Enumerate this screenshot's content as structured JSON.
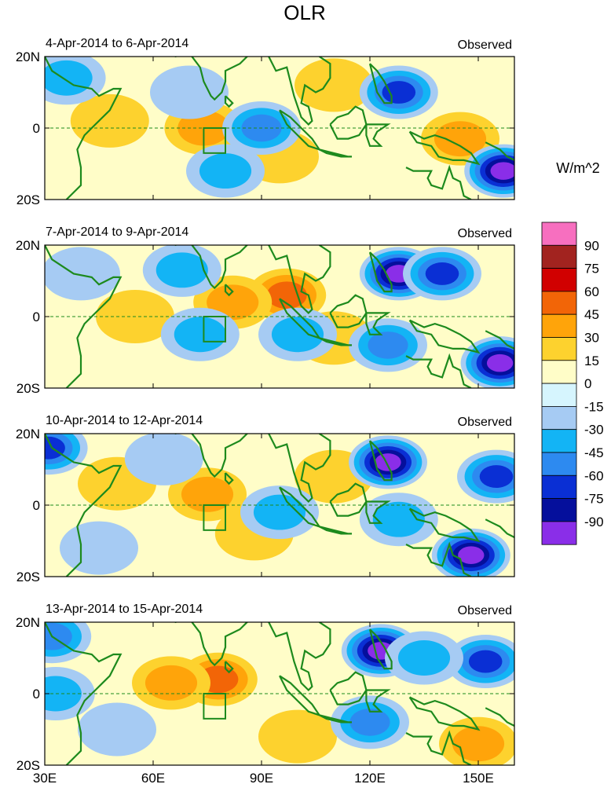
{
  "chart_data": {
    "type": "heatmap",
    "title": "OLR",
    "units": "W/m^2",
    "x_axis": {
      "range": [
        30,
        160
      ],
      "ticks": [
        30,
        60,
        90,
        120,
        150
      ],
      "tick_labels": [
        "30E",
        "60E",
        "90E",
        "120E",
        "150E"
      ]
    },
    "y_axis": {
      "range": [
        -20,
        20
      ],
      "ticks": [
        20,
        0,
        -20
      ],
      "tick_labels": [
        "20N",
        "0",
        "20S"
      ]
    },
    "colorbar": {
      "levels": [
        90,
        75,
        60,
        45,
        30,
        15,
        0,
        -15,
        -30,
        -45,
        -60,
        -75,
        -90
      ],
      "labels": [
        "90",
        "75",
        "60",
        "45",
        "30",
        "15",
        "0",
        "-15",
        "-30",
        "-45",
        "-60",
        "-75",
        "-90"
      ],
      "colors": [
        "#f76fbf",
        "#a2231f",
        "#d10000",
        "#f26507",
        "#ffa40a",
        "#fdd22e",
        "#fffdc8",
        "#d6f5fe",
        "#a6cbf3",
        "#13b4f5",
        "#2d8af0",
        "#0a2fd4",
        "#050f9c",
        "#8a2ee8"
      ]
    },
    "panels": [
      {
        "period": "4-Apr-2014 to 6-Apr-2014",
        "label": "Observed",
        "anomalies": [
          {
            "lon": 48,
            "lat": 2,
            "value": 25
          },
          {
            "lon": 74,
            "lat": 0,
            "value": 38
          },
          {
            "lon": 95,
            "lat": -8,
            "value": 22
          },
          {
            "lon": 145,
            "lat": -3,
            "value": 40
          },
          {
            "lon": 110,
            "lat": 12,
            "value": 20
          },
          {
            "lon": 90,
            "lat": 0,
            "value": -45
          },
          {
            "lon": 80,
            "lat": -12,
            "value": -40
          },
          {
            "lon": 128,
            "lat": 10,
            "value": -70
          },
          {
            "lon": 157,
            "lat": -12,
            "value": -95
          },
          {
            "lon": 36,
            "lat": 14,
            "value": -30
          },
          {
            "lon": 70,
            "lat": 10,
            "value": -15
          }
        ]
      },
      {
        "period": "7-Apr-2014 to 9-Apr-2014",
        "label": "Observed",
        "anomalies": [
          {
            "lon": 97,
            "lat": 6,
            "value": 50
          },
          {
            "lon": 82,
            "lat": 4,
            "value": 32
          },
          {
            "lon": 55,
            "lat": 0,
            "value": 25
          },
          {
            "lon": 110,
            "lat": -6,
            "value": 20
          },
          {
            "lon": 128,
            "lat": 12,
            "value": -95
          },
          {
            "lon": 156,
            "lat": -13,
            "value": -95
          },
          {
            "lon": 140,
            "lat": 12,
            "value": -65
          },
          {
            "lon": 125,
            "lat": -8,
            "value": -45
          },
          {
            "lon": 73,
            "lat": -5,
            "value": -35
          },
          {
            "lon": 68,
            "lat": 13,
            "value": -30
          },
          {
            "lon": 100,
            "lat": -5,
            "value": -30
          },
          {
            "lon": 40,
            "lat": 12,
            "value": -15
          }
        ]
      },
      {
        "period": "10-Apr-2014 to 12-Apr-2014",
        "label": "Observed",
        "anomalies": [
          {
            "lon": 75,
            "lat": 3,
            "value": 35
          },
          {
            "lon": 50,
            "lat": 6,
            "value": 22
          },
          {
            "lon": 88,
            "lat": -8,
            "value": 20
          },
          {
            "lon": 110,
            "lat": 8,
            "value": 18
          },
          {
            "lon": 125,
            "lat": 12,
            "value": -95
          },
          {
            "lon": 148,
            "lat": -14,
            "value": -90
          },
          {
            "lon": 31,
            "lat": 16,
            "value": -70
          },
          {
            "lon": 155,
            "lat": 8,
            "value": -60
          },
          {
            "lon": 95,
            "lat": -2,
            "value": -40
          },
          {
            "lon": 128,
            "lat": -4,
            "value": -30
          },
          {
            "lon": 63,
            "lat": 13,
            "value": -25
          },
          {
            "lon": 45,
            "lat": -12,
            "value": -20
          }
        ]
      },
      {
        "period": "13-Apr-2014 to 15-Apr-2014",
        "label": "Observed",
        "anomalies": [
          {
            "lon": 78,
            "lat": 4,
            "value": 45
          },
          {
            "lon": 65,
            "lat": 3,
            "value": 30
          },
          {
            "lon": 100,
            "lat": -12,
            "value": 28
          },
          {
            "lon": 150,
            "lat": -14,
            "value": 35
          },
          {
            "lon": 123,
            "lat": 12,
            "value": -90
          },
          {
            "lon": 152,
            "lat": 9,
            "value": -60
          },
          {
            "lon": 135,
            "lat": 10,
            "value": -40
          },
          {
            "lon": 120,
            "lat": -8,
            "value": -45
          },
          {
            "lon": 32,
            "lat": 16,
            "value": -55
          },
          {
            "lon": 50,
            "lat": -10,
            "value": -20
          },
          {
            "lon": 33,
            "lat": 0,
            "value": -30
          }
        ]
      }
    ]
  }
}
